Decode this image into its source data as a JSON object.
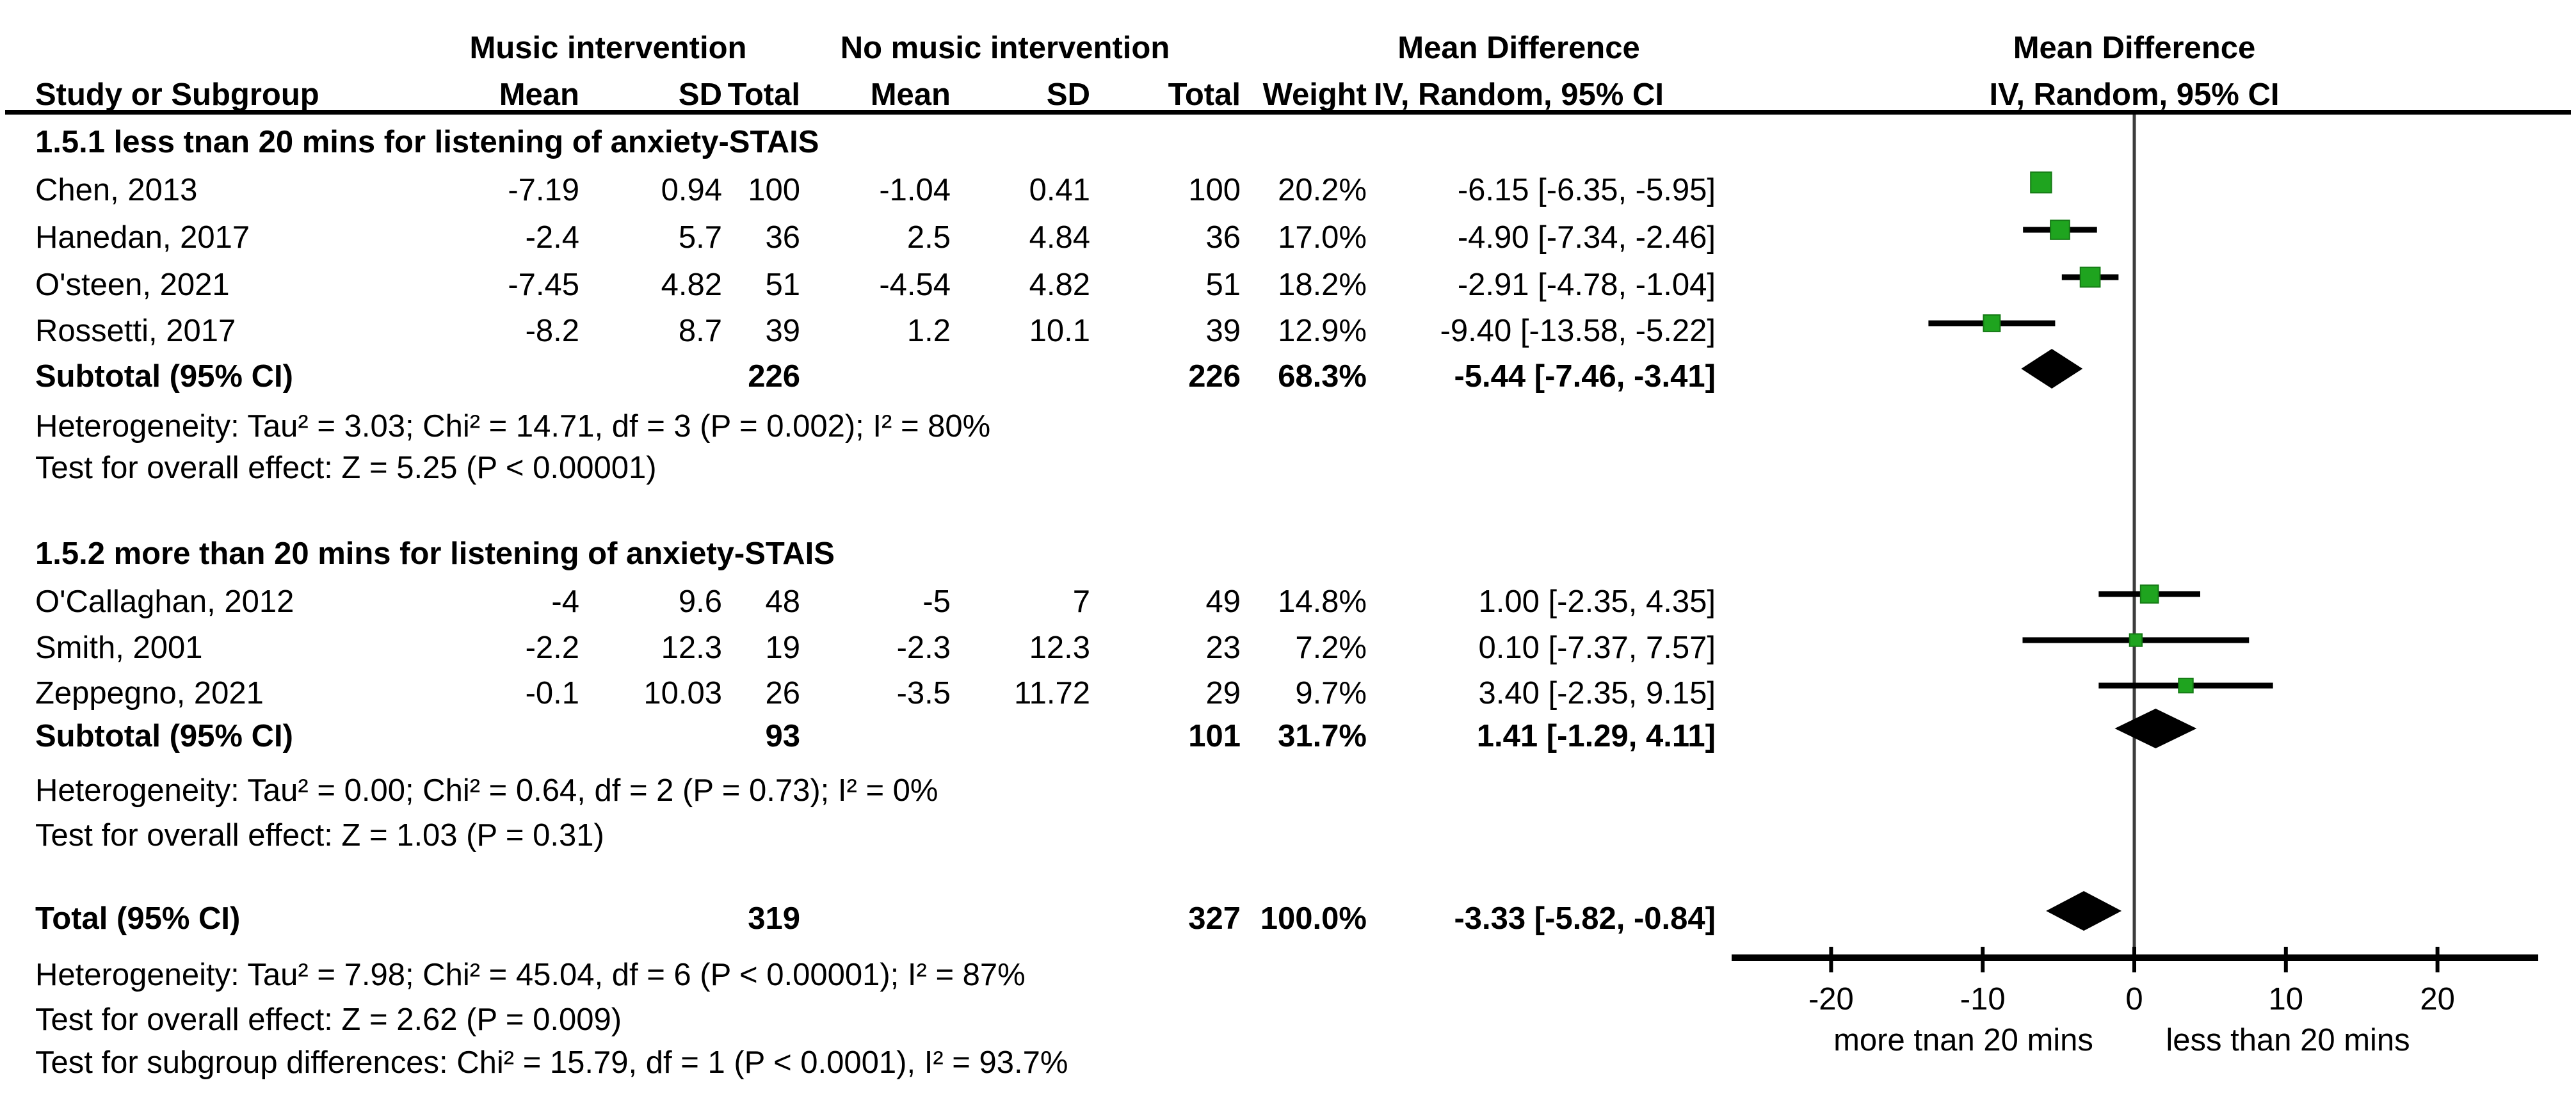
{
  "colors": {
    "square": "#1fa41f",
    "square_border": "#157a15",
    "ink": "#000000",
    "zero_line": "#3c3c3c"
  },
  "header": {
    "study_col": "Study or Subgroup",
    "group1": "Music intervention",
    "group2": "No music intervention",
    "mean": "Mean",
    "sd": "SD",
    "total": "Total",
    "weight": "Weight",
    "effect_col_title": "Mean Difference",
    "effect_col_sub": "IV, Random, 95% CI",
    "plot_title": "Mean Difference",
    "plot_sub": "IV, Random, 95% CI"
  },
  "sections": [
    {
      "title": "1.5.1 less tnan 20 mins for listening of anxiety-STAIS",
      "studies": [
        {
          "name": "Chen, 2013",
          "mean1": "-7.19",
          "sd1": "0.94",
          "total1": "100",
          "mean2": "-1.04",
          "sd2": "0.41",
          "total2": "100",
          "weight": "20.2%",
          "ci": "-6.15 [-6.35, -5.95]"
        },
        {
          "name": "Hanedan, 2017",
          "mean1": "-2.4",
          "sd1": "5.7",
          "total1": "36",
          "mean2": "2.5",
          "sd2": "4.84",
          "total2": "36",
          "weight": "17.0%",
          "ci": "-4.90 [-7.34, -2.46]"
        },
        {
          "name": "O'steen, 2021",
          "mean1": "-7.45",
          "sd1": "4.82",
          "total1": "51",
          "mean2": "-4.54",
          "sd2": "4.82",
          "total2": "51",
          "weight": "18.2%",
          "ci": "-2.91 [-4.78, -1.04]"
        },
        {
          "name": "Rossetti, 2017",
          "mean1": "-8.2",
          "sd1": "8.7",
          "total1": "39",
          "mean2": "1.2",
          "sd2": "10.1",
          "total2": "39",
          "weight": "12.9%",
          "ci": "-9.40 [-13.58, -5.22]"
        }
      ],
      "subtotal": {
        "label": "Subtotal (95% CI)",
        "total1": "226",
        "total2": "226",
        "weight": "68.3%",
        "ci": "-5.44 [-7.46, -3.41]"
      },
      "heterogeneity": "Heterogeneity: Tau² = 3.03; Chi² = 14.71, df = 3 (P = 0.002); I² = 80%",
      "overall_effect": "Test for overall effect: Z = 5.25 (P < 0.00001)"
    },
    {
      "title": "1.5.2 more than 20 mins for listening of anxiety-STAIS",
      "studies": [
        {
          "name": "O'Callaghan, 2012",
          "mean1": "-4",
          "sd1": "9.6",
          "total1": "48",
          "mean2": "-5",
          "sd2": "7",
          "total2": "49",
          "weight": "14.8%",
          "ci": "1.00 [-2.35, 4.35]"
        },
        {
          "name": "Smith, 2001",
          "mean1": "-2.2",
          "sd1": "12.3",
          "total1": "19",
          "mean2": "-2.3",
          "sd2": "12.3",
          "total2": "23",
          "weight": "7.2%",
          "ci": "0.10 [-7.37, 7.57]"
        },
        {
          "name": "Zeppegno, 2021",
          "mean1": "-0.1",
          "sd1": "10.03",
          "total1": "26",
          "mean2": "-3.5",
          "sd2": "11.72",
          "total2": "29",
          "weight": "9.7%",
          "ci": "3.40 [-2.35, 9.15]"
        }
      ],
      "subtotal": {
        "label": "Subtotal (95% CI)",
        "total1": "93",
        "total2": "101",
        "weight": "31.7%",
        "ci": "1.41 [-1.29, 4.11]"
      },
      "heterogeneity": "Heterogeneity: Tau² = 0.00; Chi² = 0.64, df = 2 (P = 0.73); I² = 0%",
      "overall_effect": "Test for overall effect: Z = 1.03 (P = 0.31)"
    }
  ],
  "total_row": {
    "label": "Total (95% CI)",
    "total1": "319",
    "total2": "327",
    "weight": "100.0%",
    "ci": "-3.33 [-5.82, -0.84]"
  },
  "footer": {
    "heterogeneity": "Heterogeneity: Tau² = 7.98; Chi² = 45.04, df = 6 (P < 0.00001); I² = 87%",
    "overall_effect": "Test for overall effect: Z = 2.62 (P = 0.009)",
    "subgroup": "Test for subgroup differences: Chi² = 15.79, df = 1 (P < 0.0001), I² = 93.7%"
  },
  "chart_data": {
    "type": "forest",
    "effect_measure": "Mean Difference (IV, Random, 95% CI)",
    "x_ticks": [
      -20,
      -10,
      0,
      10,
      20
    ],
    "x_range": [
      -27,
      27
    ],
    "x_label_left": "more tnan 20 mins",
    "x_label_right": "less than 20 mins",
    "studies": [
      {
        "name": "Chen, 2013",
        "est": -6.15,
        "lo": -6.35,
        "hi": -5.95,
        "weight": 20.2
      },
      {
        "name": "Hanedan, 2017",
        "est": -4.9,
        "lo": -7.34,
        "hi": -2.46,
        "weight": 17.0
      },
      {
        "name": "O'steen, 2021",
        "est": -2.91,
        "lo": -4.78,
        "hi": -1.04,
        "weight": 18.2
      },
      {
        "name": "Rossetti, 2017",
        "est": -9.4,
        "lo": -13.58,
        "hi": -5.22,
        "weight": 12.9
      },
      {
        "name": "O'Callaghan, 2012",
        "est": 1.0,
        "lo": -2.35,
        "hi": 4.35,
        "weight": 14.8
      },
      {
        "name": "Smith, 2001",
        "est": 0.1,
        "lo": -7.37,
        "hi": 7.57,
        "weight": 7.2
      },
      {
        "name": "Zeppegno, 2021",
        "est": 3.4,
        "lo": -2.35,
        "hi": 9.15,
        "weight": 9.7
      }
    ],
    "diamonds": [
      {
        "name": "Subtotal 1.5.1",
        "est": -5.44,
        "lo": -7.46,
        "hi": -3.41
      },
      {
        "name": "Subtotal 1.5.2",
        "est": 1.41,
        "lo": -1.29,
        "hi": 4.11
      },
      {
        "name": "Total",
        "est": -3.33,
        "lo": -5.82,
        "hi": -0.84
      }
    ]
  }
}
